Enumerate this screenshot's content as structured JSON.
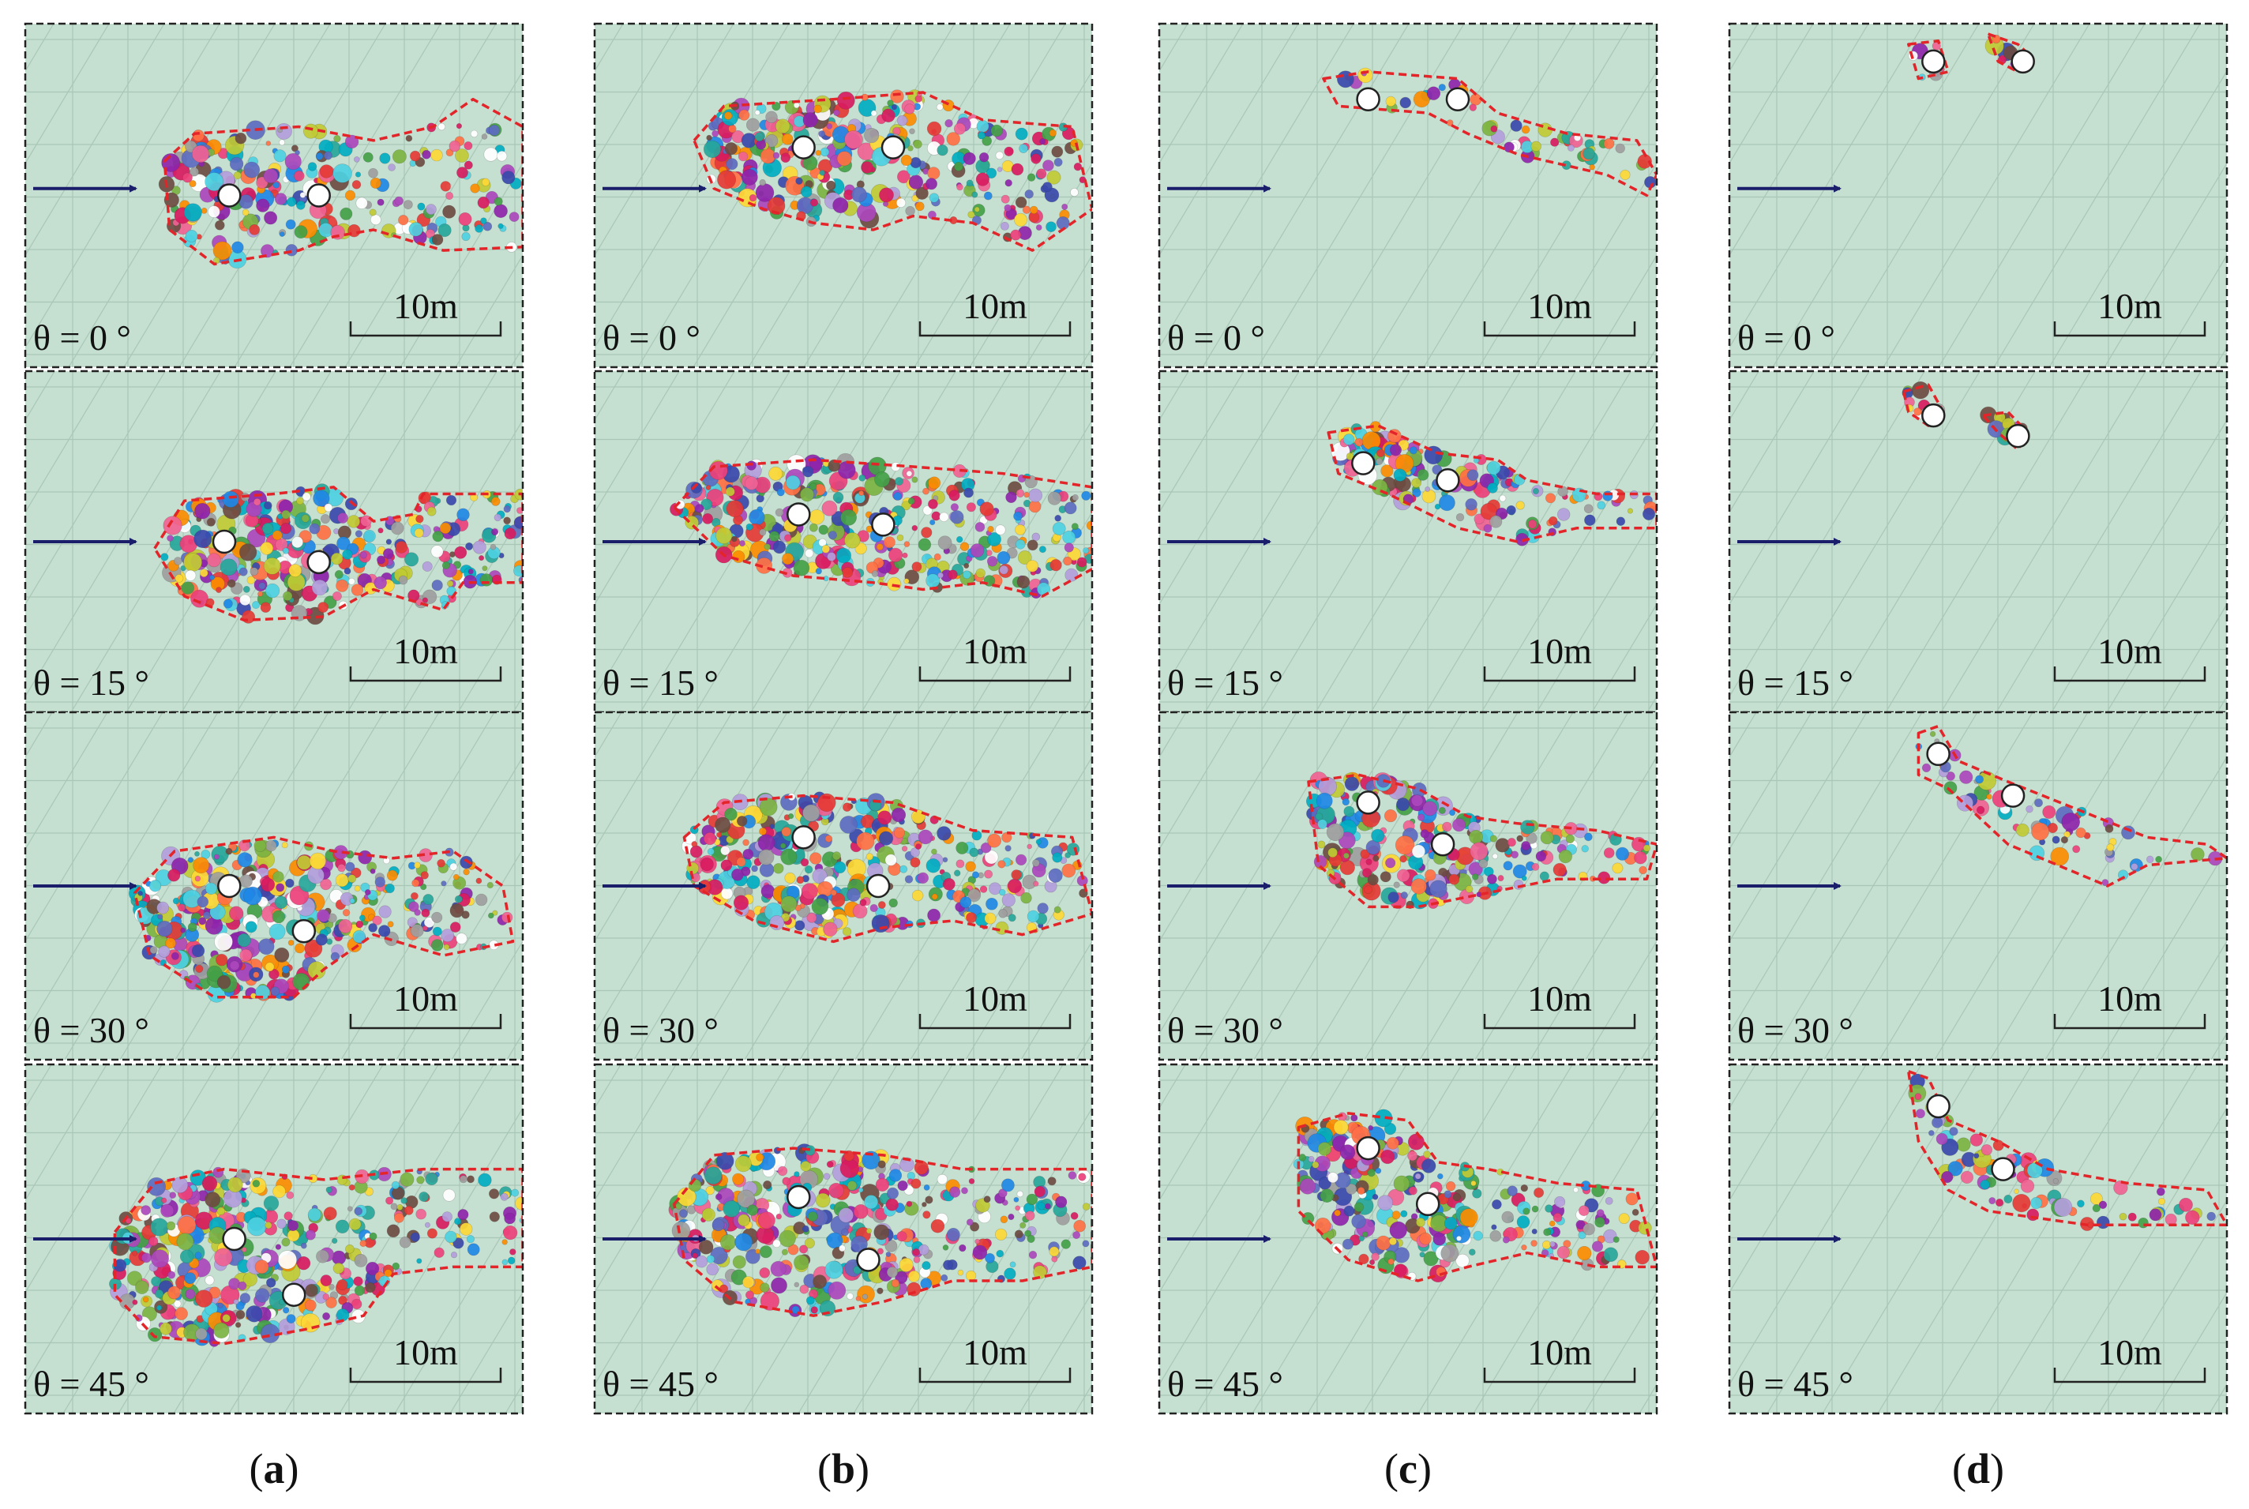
{
  "figure": {
    "scale_label": "10m",
    "theta_symbol": "θ",
    "degree_symbol": "°",
    "columns": [
      {
        "label": "a",
        "rows": [
          {
            "theta_text": "θ = 0 °",
            "angle": 0
          },
          {
            "theta_text": "θ = 15 °",
            "angle": 15
          },
          {
            "theta_text": "θ = 30 °",
            "angle": 30
          },
          {
            "theta_text": "θ = 45 °",
            "angle": 45
          }
        ]
      },
      {
        "label": "b",
        "rows": [
          {
            "theta_text": "θ = 0 °",
            "angle": 0
          },
          {
            "theta_text": "θ = 15 °",
            "angle": 15
          },
          {
            "theta_text": "θ = 30 °",
            "angle": 30
          },
          {
            "theta_text": "θ = 45 °",
            "angle": 45
          }
        ]
      },
      {
        "label": "c",
        "rows": [
          {
            "theta_text": "θ = 0 °",
            "angle": 0
          },
          {
            "theta_text": "θ = 15 °",
            "angle": 15
          },
          {
            "theta_text": "θ = 30 °",
            "angle": 30
          },
          {
            "theta_text": "θ = 45 °",
            "angle": 45
          }
        ]
      },
      {
        "label": "d",
        "rows": [
          {
            "theta_text": "θ = 0 °",
            "angle": 0
          },
          {
            "theta_text": "θ = 15 °",
            "angle": 15
          },
          {
            "theta_text": "θ = 30 °",
            "angle": 30
          },
          {
            "theta_text": "θ = 45 °",
            "angle": 45
          }
        ]
      }
    ]
  },
  "colors": {
    "panel_bg": "#c5dfd0",
    "grid": "#a9c7b7",
    "outline": "#e3252a",
    "arrow": "#1b1f6b",
    "frame": "#222222",
    "marker_fill": "#ffffff",
    "marker_stroke": "#222222",
    "particles": [
      "#e53935",
      "#8e24aa",
      "#3949ab",
      "#1e88e5",
      "#00acc1",
      "#43a047",
      "#fdd835",
      "#fb8c00",
      "#d81b60",
      "#6d4c41",
      "#ec407a",
      "#7cb342",
      "#5c6bc0",
      "#26a69a",
      "#ab47bc",
      "#ff7043",
      "#9e9e9e",
      "#f06292",
      "#4dd0e1",
      "#c0ca33",
      "#ffffff",
      "#b39ddb"
    ]
  }
}
